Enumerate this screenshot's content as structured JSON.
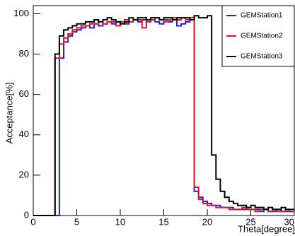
{
  "chart_data": {
    "type": "histogram",
    "xlabel": "Theta[degree]",
    "ylabel": "Acceptance[%]",
    "bins": [
      0,
      0.5,
      1,
      1.5,
      2,
      2.5,
      3,
      3.5,
      4,
      4.5,
      5,
      5.5,
      6,
      6.5,
      7,
      7.5,
      8,
      8.5,
      9,
      9.5,
      10,
      10.5,
      11,
      11.5,
      12,
      12.5,
      13,
      13.5,
      14,
      14.5,
      15,
      15.5,
      16,
      16.5,
      17,
      17.5,
      18,
      18.5,
      19,
      19.5,
      20,
      20.5,
      21,
      21.5,
      22,
      22.5,
      23,
      23.5,
      24,
      24.5,
      25,
      25.5,
      26,
      26.5,
      27,
      27.5,
      28,
      28.5,
      29,
      29.5,
      30
    ],
    "series": [
      {
        "name": "GEMStation1",
        "color": "#1f1fe0",
        "values": [
          0,
          0,
          0,
          0,
          0,
          0,
          78,
          86,
          89,
          91,
          92,
          93,
          94,
          93,
          95,
          94,
          95,
          96,
          95,
          96,
          96,
          95,
          96,
          97,
          96,
          97,
          96,
          97,
          96,
          95,
          97,
          96,
          97,
          94,
          95,
          96,
          97,
          12,
          9,
          7,
          6,
          5,
          5,
          4,
          4,
          4,
          3,
          3,
          3,
          3,
          3,
          3,
          2,
          3,
          2,
          2,
          3,
          2,
          2,
          2
        ]
      },
      {
        "name": "GEMStation2",
        "color": "#e0141e",
        "values": [
          0,
          0,
          0,
          0,
          0,
          78,
          85,
          88,
          90,
          92,
          93,
          94,
          94,
          95,
          95,
          96,
          95,
          96,
          96,
          94,
          96,
          97,
          96,
          97,
          97,
          93,
          96,
          97,
          98,
          97,
          96,
          97,
          98,
          97,
          98,
          97,
          98,
          14,
          8,
          6,
          5,
          5,
          4,
          4,
          4,
          3,
          3,
          3,
          4,
          3,
          3,
          2,
          3,
          3,
          2,
          3,
          2,
          2,
          3,
          2
        ]
      },
      {
        "name": "GEMStation3",
        "color": "#000000",
        "values": [
          0,
          0,
          0,
          0,
          0,
          80,
          89,
          92,
          93,
          94,
          95,
          95,
          96,
          96,
          97,
          96,
          97,
          98,
          97,
          96,
          95,
          96,
          98,
          97,
          98,
          98,
          97,
          98,
          98,
          97,
          98,
          98,
          97,
          98,
          98,
          98,
          97,
          99,
          98,
          98,
          99,
          30,
          18,
          12,
          9,
          7,
          6,
          5,
          5,
          4,
          5,
          4,
          4,
          3,
          4,
          3,
          3,
          4,
          3,
          3
        ]
      }
    ],
    "xlim": [
      0,
      30
    ],
    "xticks": [
      0,
      5,
      10,
      15,
      20,
      25,
      30
    ],
    "ylim": [
      0,
      104
    ],
    "yticks": [
      0,
      20,
      40,
      60,
      80,
      100
    ],
    "legend": "upper right"
  }
}
